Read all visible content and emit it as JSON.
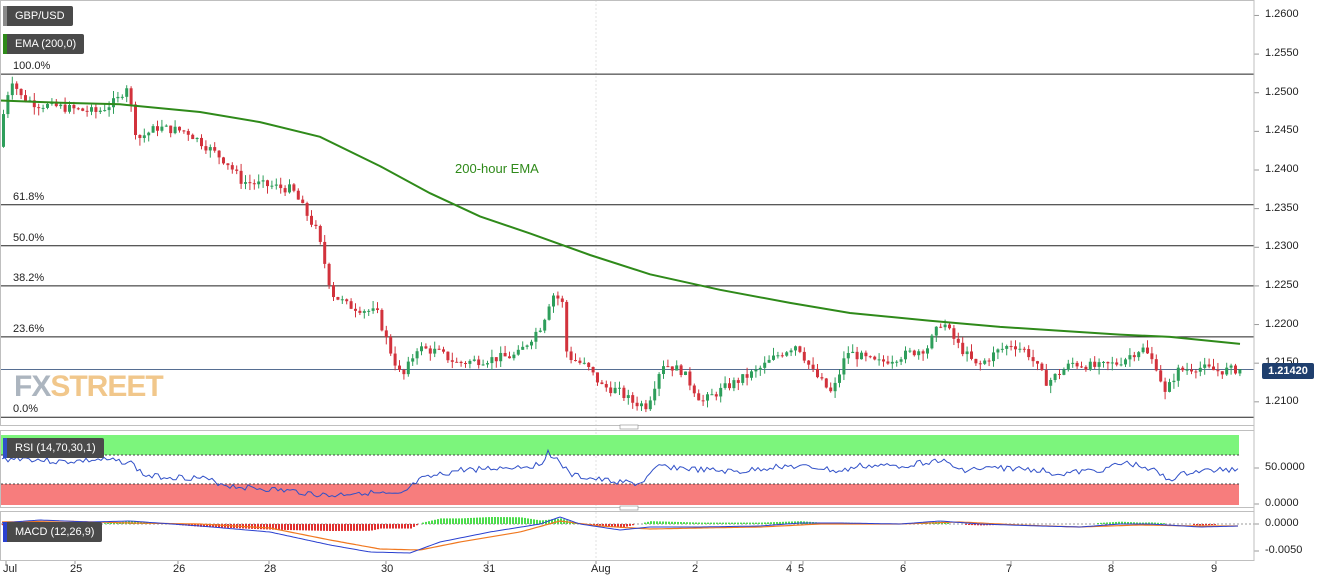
{
  "instrument": "GBP/USD",
  "price_panel": {
    "ema_label": "EMA (200,0)",
    "ema_annotation": "200-hour EMA",
    "current_price": "1.21420",
    "fib_levels": [
      {
        "label": "100.0%",
        "price": 1.2524
      },
      {
        "label": "61.8%",
        "price": 1.2355
      },
      {
        "label": "50.0%",
        "price": 1.2302
      },
      {
        "label": "38.2%",
        "price": 1.225
      },
      {
        "label": "23.6%",
        "price": 1.2184
      },
      {
        "label": "0.0%",
        "price": 1.208
      }
    ],
    "y_ticks": [
      "1.2600",
      "1.2550",
      "1.2500",
      "1.2450",
      "1.2400",
      "1.2350",
      "1.2300",
      "1.2250",
      "1.2200",
      "1.2150",
      "1.2100"
    ]
  },
  "rsi_panel": {
    "label": "RSI (14,70,30,1)",
    "y_ticks": [
      "50.0000",
      "0.0000"
    ]
  },
  "macd_panel": {
    "label": "MACD (12,26,9)",
    "y_ticks": [
      "0.0000",
      "-0.0050"
    ]
  },
  "x_ticks": [
    "Jul",
    "25",
    "26",
    "28",
    "30",
    "31",
    "Aug",
    "2",
    "4",
    "5",
    "6",
    "7",
    "8",
    "9"
  ],
  "logo": {
    "part1": "FX",
    "part2": "STREET"
  },
  "colors": {
    "up": "#2e9e5b",
    "down": "#d2323c",
    "ema": "#2f8a1a",
    "rsi": "#3050c8",
    "rsi_high_zone": "#7cf57c",
    "rsi_low_zone": "#f77d7d",
    "macd": "#2a40d0",
    "signal": "#f07820",
    "hist_up": "#4cdc4c",
    "hist_down": "#e03030"
  },
  "chart_data": {
    "type": "line",
    "title": "GBP/USD",
    "x": [
      "Jul 24",
      "Jul 25",
      "Jul 26",
      "Jul 28",
      "Jul 30",
      "Jul 31",
      "Aug 1",
      "Aug 2",
      "Aug 4",
      "Aug 5",
      "Aug 6",
      "Aug 7",
      "Aug 8",
      "Aug 9"
    ],
    "series": [
      {
        "name": "GBP/USD",
        "values": [
          1.249,
          1.2495,
          1.245,
          1.2385,
          1.215,
          1.215,
          1.212,
          1.2115,
          1.215,
          1.2145,
          1.2165,
          1.216,
          1.214,
          1.2142
        ]
      },
      {
        "name": "EMA (200,0)",
        "values": [
          1.249,
          1.2485,
          1.2465,
          1.243,
          1.235,
          1.23,
          1.2265,
          1.2245,
          1.223,
          1.2225,
          1.2215,
          1.2208,
          1.2195,
          1.2188
        ]
      }
    ],
    "ylim": [
      1.207,
      1.262
    ]
  }
}
